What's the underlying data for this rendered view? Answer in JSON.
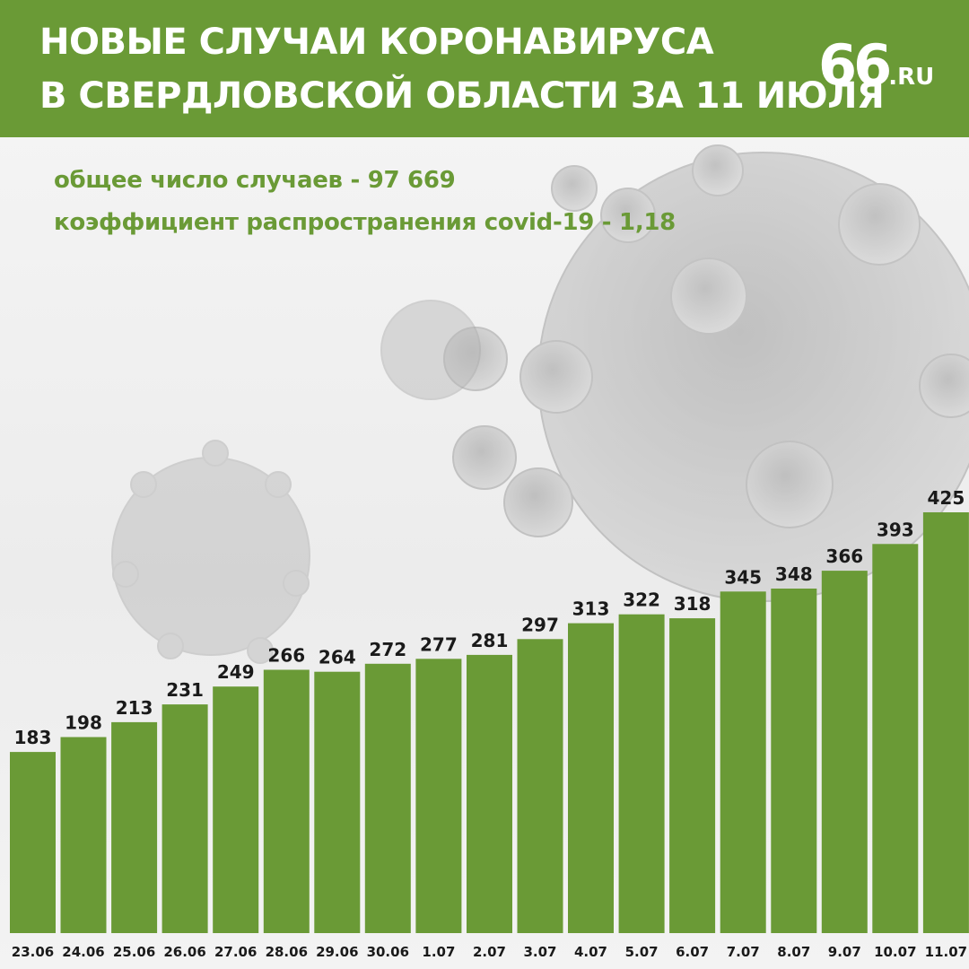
{
  "header": {
    "title_line1": "НОВЫЕ СЛУЧАИ КОРОНАВИРУСА",
    "title_line2": "В СВЕРДЛОВСКОЙ ОБЛАСТИ ЗА 11 ИЮЛЯ",
    "logo_number": "66",
    "logo_suffix": ".RU"
  },
  "stats": {
    "total_cases": "общее число случаев -  97 669",
    "spread_ratio": "коэффициент распространения covid-19 - 1,18"
  },
  "colors": {
    "brand_green": "#6a9a36",
    "label_text": "#1a1a1a",
    "header_text": "#ffffff"
  },
  "chart_data": {
    "type": "bar",
    "title": "НОВЫЕ СЛУЧАИ КОРОНАВИРУСА В СВЕРДЛОВСКОЙ ОБЛАСТИ ЗА 11 ИЮЛЯ",
    "categories": [
      "23.06",
      "24.06",
      "25.06",
      "26.06",
      "27.06",
      "28.06",
      "29.06",
      "30.06",
      "1.07",
      "2.07",
      "3.07",
      "4.07",
      "5.07",
      "6.07",
      "7.07",
      "8.07",
      "9.07",
      "10.07",
      "11.07"
    ],
    "values": [
      183,
      198,
      213,
      231,
      249,
      266,
      264,
      272,
      277,
      281,
      297,
      313,
      322,
      318,
      345,
      348,
      366,
      393,
      425
    ],
    "xlabel": "",
    "ylabel": "",
    "ylim": [
      0,
      425
    ],
    "grid": false,
    "legend": "none",
    "data_labels": true
  }
}
